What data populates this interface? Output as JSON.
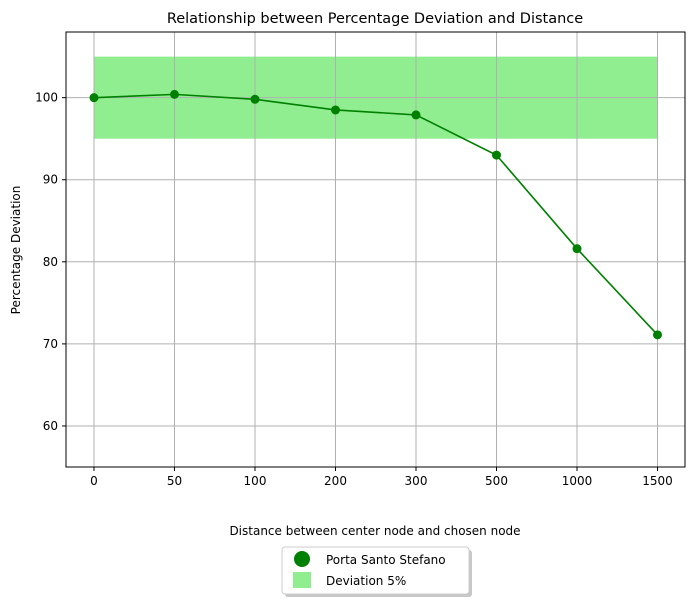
{
  "chart_data": {
    "type": "line",
    "title": "Relationship between Percentage Deviation and Distance",
    "xlabel": "Distance between center node and chosen node",
    "ylabel": "Percentage Deviation",
    "categories": [
      "0",
      "50",
      "100",
      "200",
      "300",
      "500",
      "1000",
      "1500"
    ],
    "series": [
      {
        "name": "Porta Santo Stefano",
        "values": [
          100.0,
          100.4,
          99.8,
          98.5,
          97.9,
          93.0,
          81.6,
          71.1
        ],
        "color": "#008000",
        "marker": "circle"
      }
    ],
    "band": {
      "name": "Deviation 5%",
      "ymin": 95,
      "ymax": 105,
      "color": "#90ee90"
    },
    "ylim": [
      55,
      108
    ],
    "yticks": [
      60,
      70,
      80,
      90,
      100
    ],
    "grid": true,
    "legend_position": "bottom-center, below plot"
  }
}
